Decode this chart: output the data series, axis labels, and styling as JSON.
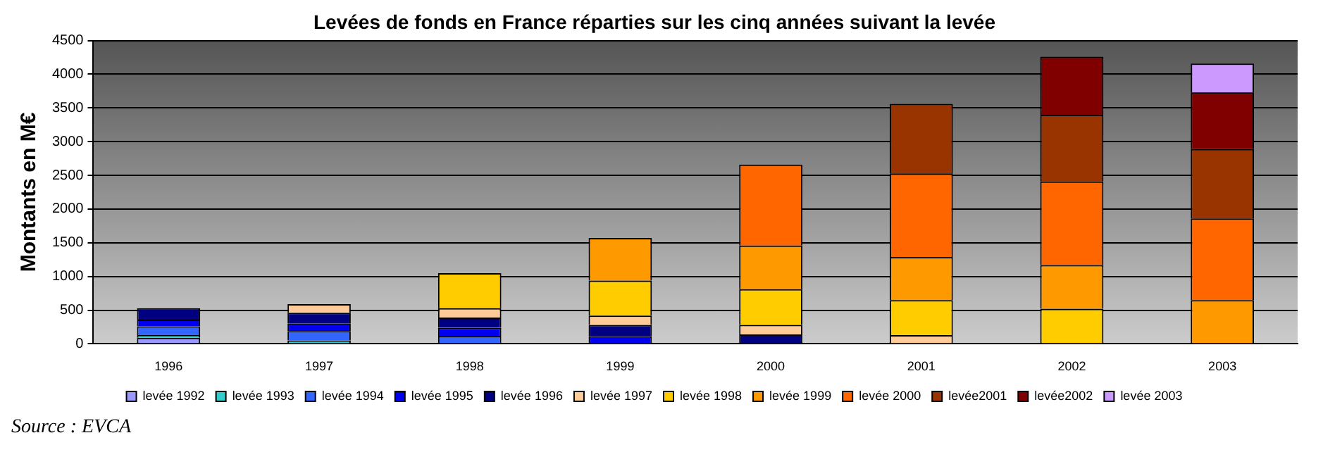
{
  "chart_data": {
    "type": "bar",
    "stacked": true,
    "title": "Levées de fonds en France réparties sur les cinq années suivant la levée",
    "ylabel": "Montants en M€",
    "categories": [
      "1996",
      "1997",
      "1998",
      "1999",
      "2000",
      "2001",
      "2002",
      "2003"
    ],
    "series": [
      {
        "name": "levée 1992",
        "color": "#9999ff",
        "values": [
          90,
          null,
          null,
          null,
          null,
          null,
          null,
          null
        ]
      },
      {
        "name": "levée 1993",
        "color": "#33cccc",
        "values": [
          40,
          50,
          null,
          null,
          null,
          null,
          null,
          null
        ]
      },
      {
        "name": "levée 1994",
        "color": "#3366ff",
        "values": [
          130,
          140,
          120,
          null,
          null,
          null,
          null,
          null
        ]
      },
      {
        "name": "levée 1995",
        "color": "#0000ee",
        "values": [
          100,
          110,
          120,
          110,
          null,
          null,
          null,
          null
        ]
      },
      {
        "name": "levée 1996",
        "color": "#000080",
        "values": [
          170,
          160,
          150,
          170,
          140,
          null,
          null,
          null
        ]
      },
      {
        "name": "levée 1997",
        "color": "#ffcc99",
        "values": [
          null,
          130,
          140,
          140,
          140,
          130,
          null,
          null
        ]
      },
      {
        "name": "levée 1998",
        "color": "#ffcc00",
        "values": [
          null,
          null,
          520,
          520,
          530,
          520,
          520,
          null
        ]
      },
      {
        "name": "levée 1999",
        "color": "#ff9900",
        "values": [
          null,
          null,
          null,
          630,
          650,
          640,
          650,
          650
        ]
      },
      {
        "name": "levée 2000",
        "color": "#ff6600",
        "values": [
          null,
          null,
          null,
          null,
          1200,
          1240,
          1240,
          1210
        ]
      },
      {
        "name": "levée2001",
        "color": "#993300",
        "values": [
          null,
          null,
          null,
          null,
          null,
          1030,
          990,
          1030
        ]
      },
      {
        "name": "levée2002",
        "color": "#800000",
        "values": [
          null,
          null,
          null,
          null,
          null,
          null,
          860,
          840
        ]
      },
      {
        "name": "levée 2003",
        "color": "#cc99ff",
        "values": [
          null,
          null,
          null,
          null,
          null,
          null,
          null,
          430
        ]
      }
    ],
    "ylim": [
      0,
      4500
    ],
    "yticks": [
      0,
      500,
      1000,
      1500,
      2000,
      2500,
      3000,
      3500,
      4000,
      4500
    ],
    "grid": "y",
    "legend": "bottom",
    "annotations": [
      "Source : EVCA"
    ]
  }
}
